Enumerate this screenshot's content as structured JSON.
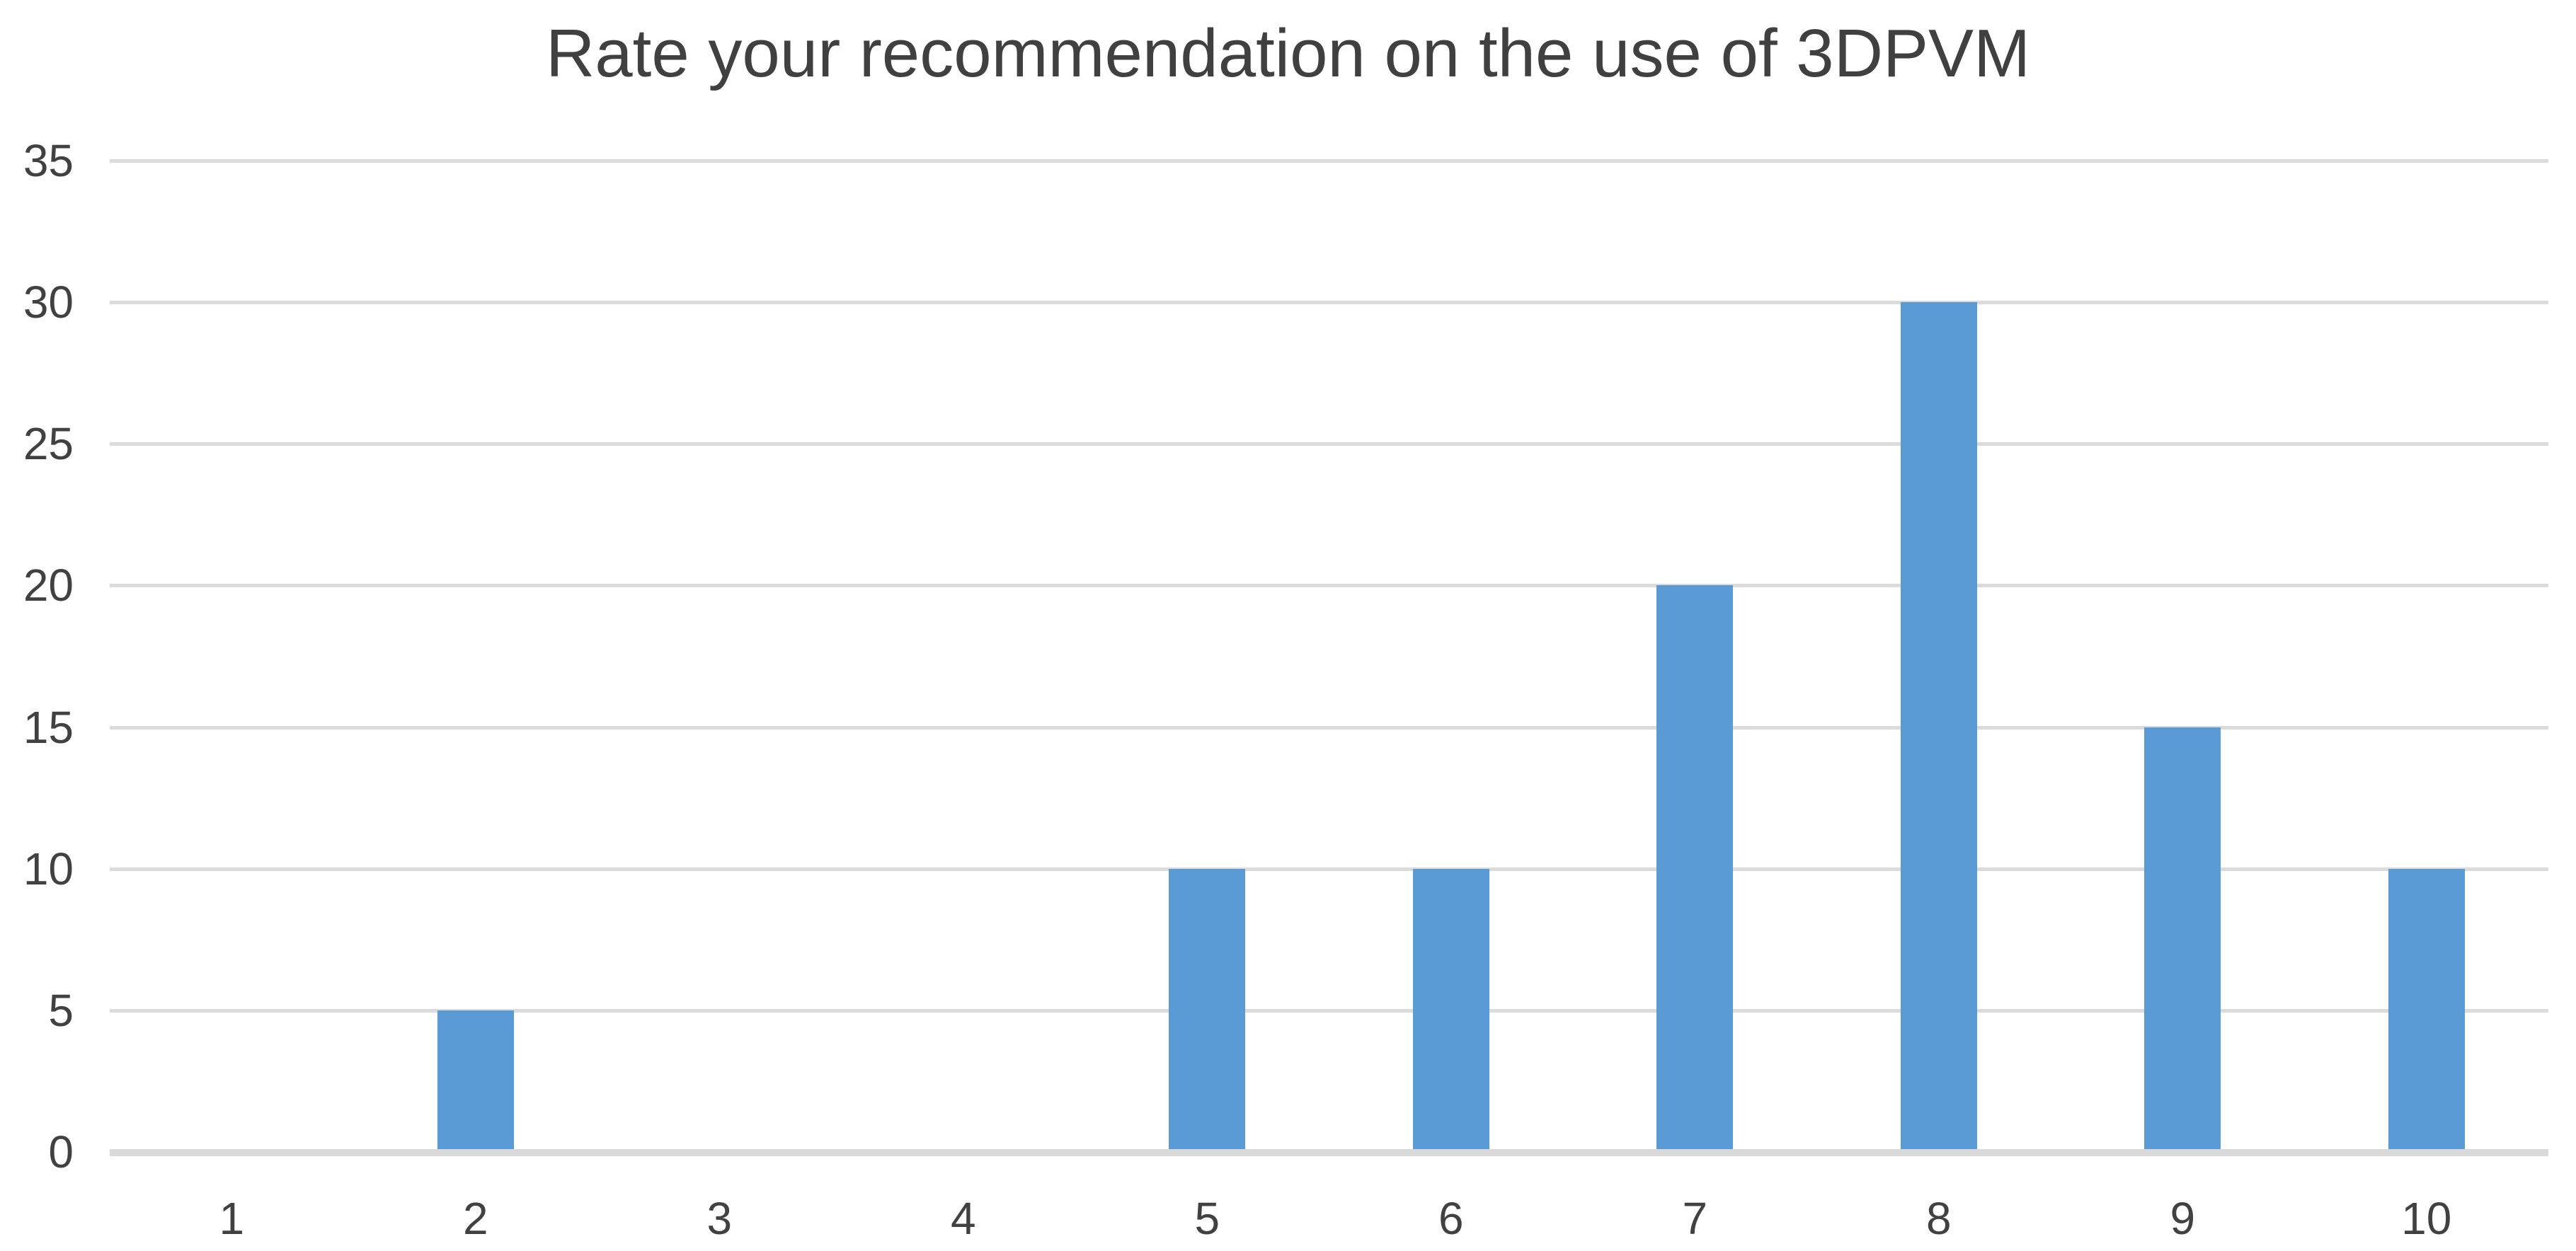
{
  "chart_data": {
    "type": "bar",
    "title": "Rate your recommendation on the use of 3DPVM",
    "categories": [
      "1",
      "2",
      "3",
      "4",
      "5",
      "6",
      "7",
      "8",
      "9",
      "10"
    ],
    "values": [
      0,
      5,
      0,
      0,
      10,
      10,
      20,
      30,
      15,
      10
    ],
    "xlabel": "",
    "ylabel": "",
    "ylim": [
      0,
      35
    ],
    "yticks": [
      0,
      5,
      10,
      15,
      20,
      25,
      30,
      35
    ],
    "grid": true,
    "legend": false,
    "colors": {
      "bar": "#5B9BD5",
      "gridline": "#DBDBDB",
      "axis_line": "#D9D9D9",
      "title_text": "#404040",
      "tick_text": "#414141",
      "background": "#FFFFFF"
    }
  }
}
